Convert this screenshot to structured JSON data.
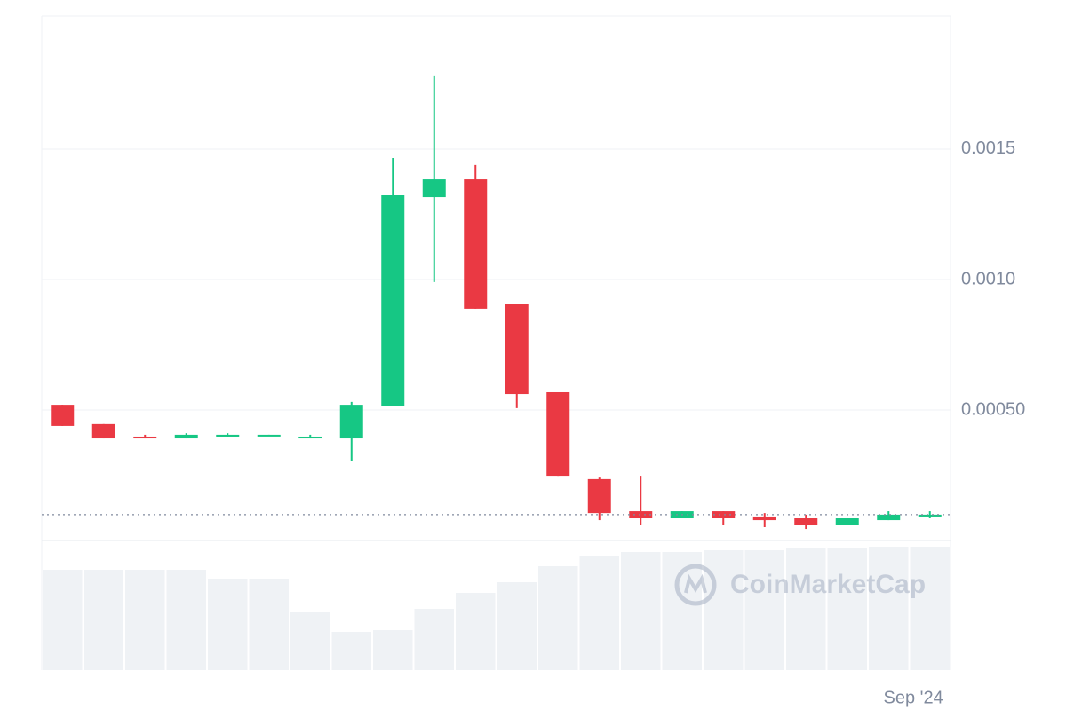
{
  "chart_data": {
    "type": "candlestick",
    "categories": [
      null,
      null,
      null,
      null,
      null,
      null,
      null,
      null,
      null,
      null,
      null,
      null,
      null,
      null,
      null,
      null,
      null,
      null,
      null,
      null,
      null,
      "Sep '24"
    ],
    "open": [
      0.00052,
      0.000446,
      0.000398,
      0.000391,
      0.000398,
      0.000401,
      0.000391,
      0.000391,
      0.000514,
      0.001316,
      0.001384,
      0.000908,
      0.000568,
      0.000235,
      0.000112,
      8.5e-05,
      0.000112,
      9.2e-05,
      8.5e-05,
      5.8e-05,
      7.8e-05,
      9.2e-05
    ],
    "high": [
      0.00052,
      0.000446,
      0.000405,
      0.000411,
      0.000411,
      0.000405,
      0.000405,
      0.000531,
      0.001466,
      0.001779,
      0.001439,
      0.000908,
      0.000568,
      0.000241,
      0.000248,
      0.000112,
      0.000112,
      0.000105,
      9.9e-05,
      8.5e-05,
      0.000112,
      0.000112
    ],
    "low": [
      0.000439,
      0.000391,
      0.000391,
      0.000391,
      0.000398,
      0.000401,
      0.000391,
      0.000303,
      0.000514,
      0.00099,
      0.000888,
      0.000507,
      0.000248,
      7.8e-05,
      5.8e-05,
      8.5e-05,
      5.8e-05,
      5.1e-05,
      4.4e-05,
      5.8e-05,
      7.8e-05,
      8.5e-05
    ],
    "close": [
      0.000439,
      0.000391,
      0.000391,
      0.000405,
      0.000405,
      0.000405,
      0.000398,
      0.00052,
      0.001323,
      0.001384,
      0.000888,
      0.000561,
      0.000248,
      0.000105,
      8.5e-05,
      0.000112,
      8.5e-05,
      7.8e-05,
      5.8e-05,
      8.5e-05,
      9.9e-05,
      9.9e-05
    ],
    "volume": [
      113,
      113,
      113,
      113,
      103,
      103,
      65,
      43,
      45,
      69,
      87,
      99,
      117,
      129,
      133,
      133,
      135,
      135,
      137,
      137,
      139,
      139
    ],
    "current_price": 9.9e-05,
    "up_color": "#16c784",
    "down_color": "#ea3943",
    "volume_color": "#eff2f5",
    "ylim": [
      0,
      0.00201
    ],
    "yticks": [
      {
        "value": 0.0005,
        "label": "0.00050"
      },
      {
        "value": 0.001,
        "label": "0.0010"
      },
      {
        "value": 0.0015,
        "label": "0.0015"
      }
    ],
    "volume_ylim": [
      0,
      140
    ],
    "grid": true,
    "watermark": "CoinMarketCap"
  }
}
